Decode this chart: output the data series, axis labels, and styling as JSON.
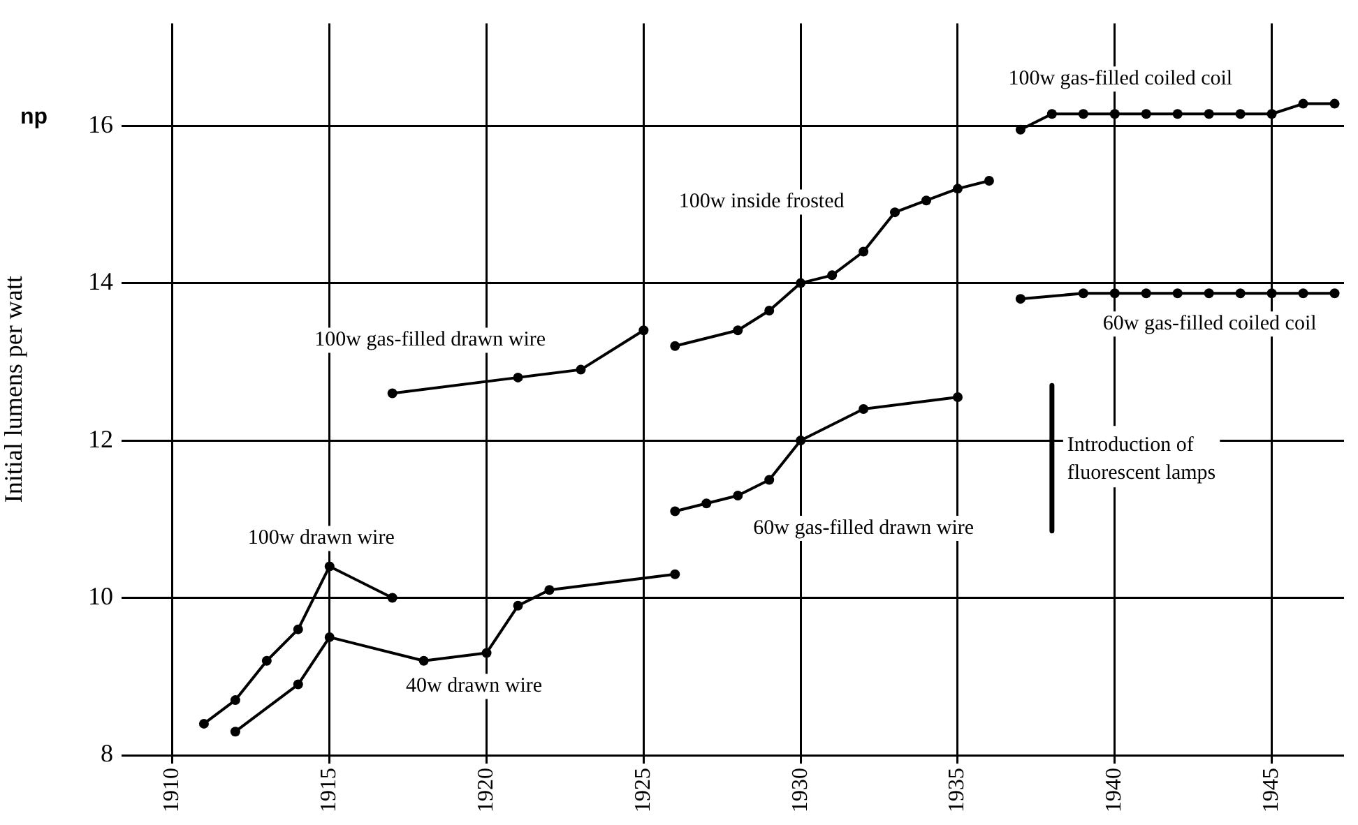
{
  "chart_data": {
    "type": "line",
    "ylabel": "Initial lumens per watt",
    "xlim": [
      1909,
      1947.3
    ],
    "xticks": [
      1910,
      1915,
      1920,
      1925,
      1930,
      1935,
      1940,
      1945
    ],
    "ylim": [
      8,
      17.3
    ],
    "yticks": [
      8,
      10,
      12,
      14,
      16
    ],
    "grid": true,
    "legend": false,
    "marker": "circle",
    "line_style": "solid",
    "series": [
      {
        "name": "100w drawn wire",
        "color": "#000000",
        "x": [
          1911,
          1912,
          1913,
          1914,
          1915,
          1917
        ],
        "values": [
          8.4,
          8.7,
          9.2,
          9.6,
          10.4,
          10.0
        ]
      },
      {
        "name": "40w drawn wire",
        "color": "#000000",
        "x": [
          1912,
          1914,
          1915,
          1918,
          1920,
          1921,
          1922,
          1926
        ],
        "values": [
          8.3,
          8.9,
          9.5,
          9.2,
          9.3,
          9.9,
          10.1,
          10.3
        ]
      },
      {
        "name": "100w gas-filled drawn wire",
        "color": "#000000",
        "x": [
          1917,
          1921,
          1923,
          1925
        ],
        "values": [
          12.6,
          12.8,
          12.9,
          13.4
        ]
      },
      {
        "name": "100w inside frosted",
        "color": "#000000",
        "x": [
          1926,
          1928,
          1929,
          1930,
          1931,
          1932,
          1933,
          1934,
          1935,
          1936
        ],
        "values": [
          13.2,
          13.4,
          13.65,
          14.0,
          14.1,
          14.4,
          14.9,
          15.05,
          15.2,
          15.3
        ]
      },
      {
        "name": "60w gas-filled drawn wire",
        "color": "#000000",
        "x": [
          1926,
          1927,
          1928,
          1929,
          1930,
          1932,
          1935
        ],
        "values": [
          11.1,
          11.2,
          11.3,
          11.5,
          12.0,
          12.4,
          12.55
        ]
      },
      {
        "name": "100w gas-filled coiled coil",
        "color": "#000000",
        "x": [
          1937,
          1938,
          1939,
          1940,
          1941,
          1942,
          1943,
          1944,
          1945,
          1946,
          1947
        ],
        "values": [
          15.95,
          16.15,
          16.15,
          16.15,
          16.15,
          16.15,
          16.15,
          16.15,
          16.15,
          16.28,
          16.28
        ]
      },
      {
        "name": "60w gas-filled coiled coil",
        "color": "#000000",
        "x": [
          1937,
          1939,
          1940,
          1941,
          1942,
          1943,
          1944,
          1945,
          1946,
          1947
        ],
        "values": [
          13.8,
          13.87,
          13.87,
          13.87,
          13.87,
          13.87,
          13.87,
          13.87,
          13.87,
          13.87
        ]
      },
      {
        "color": "#000000",
        "marker": "none",
        "x": [
          1938,
          1938
        ],
        "values": [
          12.7,
          10.85
        ]
      }
    ],
    "annotations": [
      "np",
      "Introduction of fluorescent lamps"
    ]
  }
}
